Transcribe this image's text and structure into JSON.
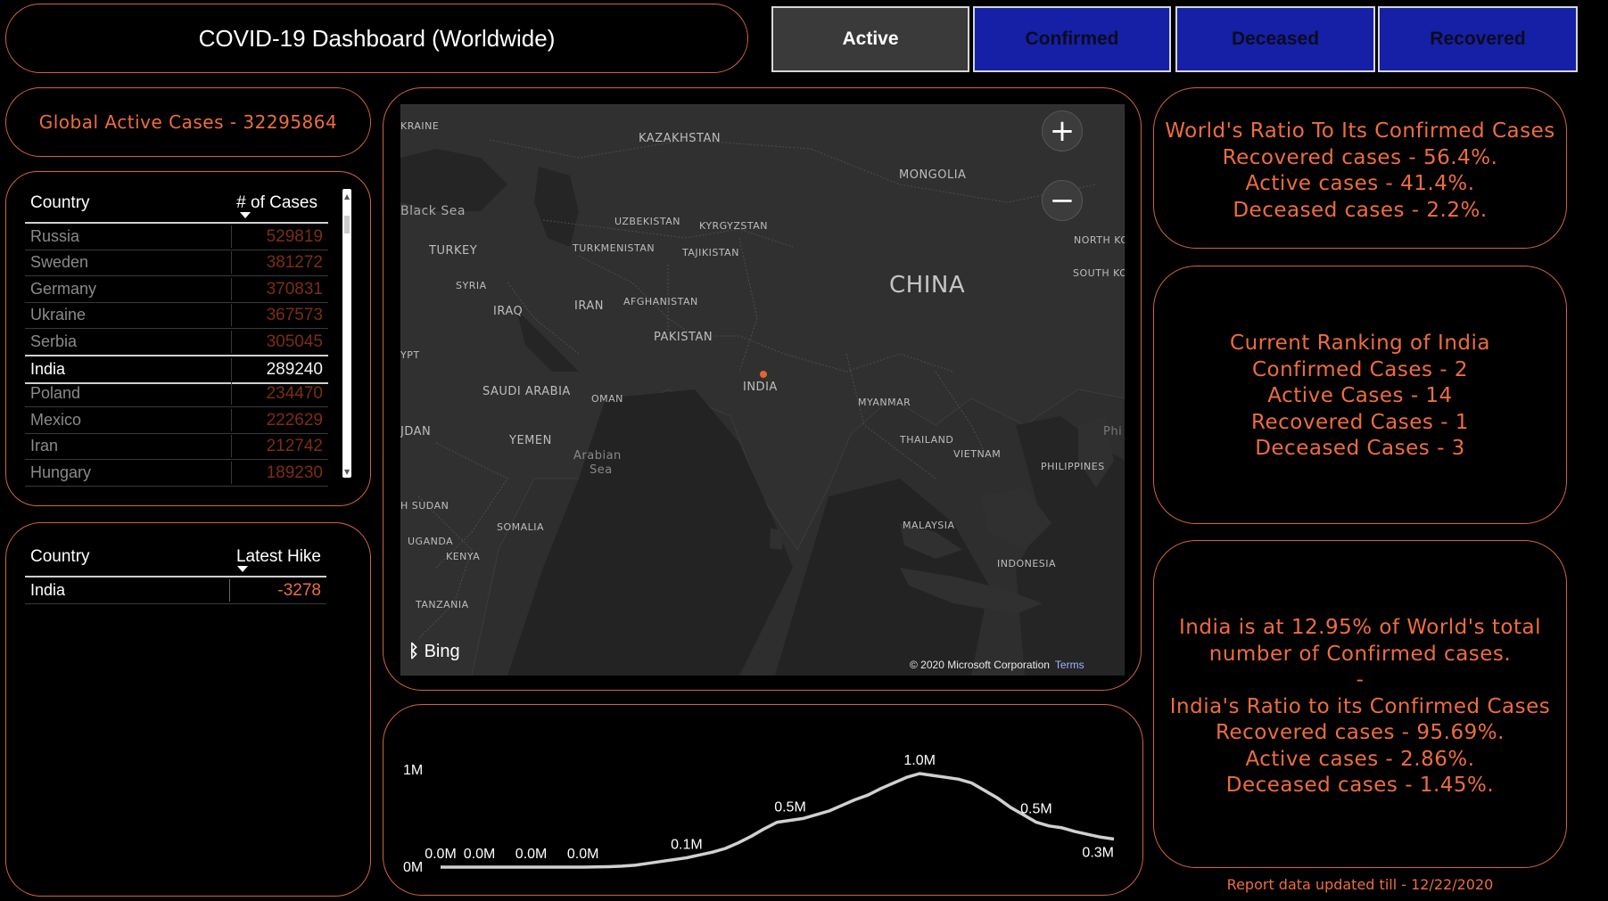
{
  "header": {
    "title": "COVID-19 Dashboard (Worldwide)"
  },
  "tabs": [
    {
      "label": "Active",
      "selected": true
    },
    {
      "label": "Confirmed",
      "selected": false
    },
    {
      "label": "Deceased",
      "selected": false
    },
    {
      "label": "Recovered",
      "selected": false
    }
  ],
  "global": {
    "text": "Global Active Cases - 32295864"
  },
  "cases_table": {
    "col_country": "Country",
    "col_cases": "# of Cases",
    "rows": [
      {
        "country": "Russia",
        "value": "529819"
      },
      {
        "country": "Sweden",
        "value": "381272"
      },
      {
        "country": "Germany",
        "value": "370831"
      },
      {
        "country": "Ukraine",
        "value": "367573"
      },
      {
        "country": "Serbia",
        "value": "305045"
      },
      {
        "country": "India",
        "value": "289240",
        "highlight": true
      },
      {
        "country": "Poland",
        "value": "234470"
      },
      {
        "country": "Mexico",
        "value": "222629"
      },
      {
        "country": "Iran",
        "value": "212742"
      },
      {
        "country": "Hungary",
        "value": "189230"
      }
    ]
  },
  "hike_table": {
    "col_country": "Country",
    "col_hike": "Latest Hike",
    "rows": [
      {
        "country": "India",
        "value": "-3278"
      }
    ]
  },
  "map": {
    "labels": {
      "ukraine": "KRAINE",
      "kazakhstan": "KAZAKHSTAN",
      "mongolia": "MONGOLIA",
      "black_sea": "Black Sea",
      "uzbekistan": "UZBEKISTAN",
      "kyrgyzstan": "KYRGYZSTAN",
      "turkey": "TURKEY",
      "turkmenistan": "TURKMENISTAN",
      "tajikistan": "TAJIKISTAN",
      "north_korea": "NORTH KO",
      "south_korea": "SOUTH KO",
      "syria": "SYRIA",
      "china": "CHINA",
      "iraq": "IRAQ",
      "iran": "IRAN",
      "afghanistan": "AFGHANISTAN",
      "pakistan": "PAKISTAN",
      "egypt": "YPT",
      "saudi_arabia": "SAUDI ARABIA",
      "oman": "OMAN",
      "india": "INDIA",
      "myanmar": "MYANMAR",
      "jordan": "JDAN",
      "yemen": "YEMEN",
      "arabian_sea_1": "Arabian",
      "arabian_sea_2": "Sea",
      "thailand": "THAILAND",
      "vietnam": "VIETNAM",
      "phil": "Phi",
      "philippines": "PHILIPPINES",
      "south_sudan": "H SUDAN",
      "somalia": "SOMALIA",
      "malaysia": "MALAYSIA",
      "uganda": "UGANDA",
      "kenya": "KENYA",
      "indonesia": "INDONESIA",
      "tanzania": "TANZANIA"
    },
    "zoom_in": "+",
    "zoom_out": "−",
    "attribution": "Bing",
    "copyright": "© 2020 Microsoft Corporation",
    "terms": "Terms"
  },
  "chart_data": {
    "type": "line",
    "y_tick_labels": [
      "1M",
      "0M"
    ],
    "ylim": [
      0,
      1000000
    ],
    "series": [
      {
        "values": [
          0,
          0,
          0,
          0,
          0,
          0,
          0,
          0,
          0,
          0,
          0,
          0,
          2000,
          5000,
          10000,
          20000,
          40000,
          60000,
          80000,
          100000,
          130000,
          160000,
          200000,
          260000,
          330000,
          410000,
          480000,
          500000,
          520000,
          560000,
          600000,
          660000,
          720000,
          770000,
          840000,
          900000,
          960000,
          1000000,
          980000,
          960000,
          940000,
          900000,
          820000,
          740000,
          640000,
          560000,
          480000,
          440000,
          420000,
          380000,
          350000,
          320000,
          300000
        ]
      }
    ],
    "data_labels": [
      {
        "index": 0,
        "text": "0.0M"
      },
      {
        "index": 3,
        "text": "0.0M"
      },
      {
        "index": 7,
        "text": "0.0M"
      },
      {
        "index": 11,
        "text": "0.0M"
      },
      {
        "index": 19,
        "text": "0.1M"
      },
      {
        "index": 27,
        "text": "0.5M"
      },
      {
        "index": 37,
        "text": "1.0M"
      },
      {
        "index": 46,
        "text": "0.5M"
      },
      {
        "index": 52,
        "text": "0.3M"
      }
    ],
    "grid": false,
    "line_color": "#d0d0d0"
  },
  "ratio_box": {
    "lines": [
      "World's Ratio To Its Confirmed Cases",
      "Recovered cases - 56.4%.",
      "Active cases - 41.4%.",
      "Deceased cases - 2.2%."
    ]
  },
  "ranking_box": {
    "lines": [
      "Current Ranking of India",
      "Confirmed Cases - 2",
      "Active Cases - 14",
      "Recovered Cases - 1",
      "Deceased Cases - 3"
    ]
  },
  "share_box": {
    "lines": [
      "India is at 12.95% of World's total",
      "number of Confirmed cases.",
      "-",
      "India's Ratio to its Confirmed Cases",
      "Recovered cases - 95.69%.",
      "Active cases - 2.86%.",
      "Deceased cases - 1.45%."
    ]
  },
  "footer": {
    "updated": "Report data updated till - 12/22/2020"
  },
  "colors": {
    "accent": "#ee6d3e",
    "tab_inactive": "#1520a6",
    "tab_active": "#3a3a3a"
  }
}
